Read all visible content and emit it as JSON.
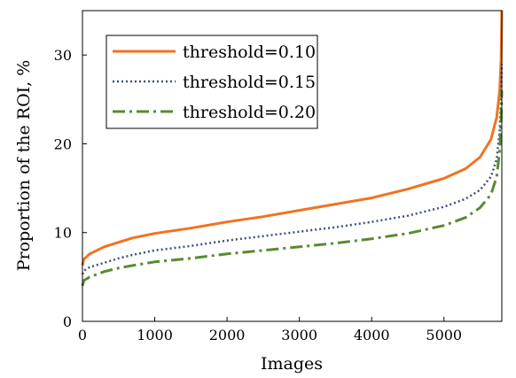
{
  "chart_data": {
    "type": "line",
    "xlabel": "Images",
    "ylabel": "Proportion of  the ROI, %",
    "xlim": [
      0,
      5800
    ],
    "ylim": [
      0,
      35
    ],
    "xticks": [
      0,
      1000,
      2000,
      3000,
      4000,
      5000
    ],
    "yticks": [
      0,
      10,
      20,
      30
    ],
    "grid": false,
    "legend_position": "top-left",
    "series": [
      {
        "name": "threshold=0.10",
        "color": "#f07320",
        "style": "solid",
        "points": [
          [
            0,
            6.3
          ],
          [
            20,
            7.0
          ],
          [
            100,
            7.6
          ],
          [
            300,
            8.4
          ],
          [
            500,
            8.9
          ],
          [
            700,
            9.4
          ],
          [
            1000,
            9.9
          ],
          [
            1500,
            10.5
          ],
          [
            2000,
            11.2
          ],
          [
            2500,
            11.8
          ],
          [
            3000,
            12.5
          ],
          [
            3500,
            13.2
          ],
          [
            4000,
            13.9
          ],
          [
            4500,
            14.9
          ],
          [
            5000,
            16.1
          ],
          [
            5300,
            17.2
          ],
          [
            5500,
            18.5
          ],
          [
            5650,
            20.5
          ],
          [
            5730,
            23.0
          ],
          [
            5770,
            26.0
          ],
          [
            5790,
            29.5
          ],
          [
            5800,
            35.0
          ]
        ]
      },
      {
        "name": "threshold=0.15",
        "color": "#3d5078",
        "style": "dotted",
        "points": [
          [
            0,
            5.3
          ],
          [
            20,
            5.7
          ],
          [
            100,
            6.1
          ],
          [
            300,
            6.6
          ],
          [
            500,
            7.1
          ],
          [
            700,
            7.5
          ],
          [
            1000,
            8.0
          ],
          [
            1500,
            8.5
          ],
          [
            2000,
            9.1
          ],
          [
            2500,
            9.6
          ],
          [
            3000,
            10.1
          ],
          [
            3500,
            10.6
          ],
          [
            4000,
            11.2
          ],
          [
            4500,
            11.9
          ],
          [
            5000,
            12.9
          ],
          [
            5300,
            13.8
          ],
          [
            5500,
            14.8
          ],
          [
            5650,
            16.3
          ],
          [
            5730,
            18.3
          ],
          [
            5770,
            21.5
          ],
          [
            5790,
            25.0
          ],
          [
            5800,
            29.0
          ]
        ]
      },
      {
        "name": "threshold=0.20",
        "color": "#5a8a32",
        "style": "dashdot",
        "points": [
          [
            0,
            4.0
          ],
          [
            20,
            4.6
          ],
          [
            100,
            5.0
          ],
          [
            300,
            5.6
          ],
          [
            500,
            6.0
          ],
          [
            700,
            6.3
          ],
          [
            1000,
            6.7
          ],
          [
            1500,
            7.1
          ],
          [
            2000,
            7.6
          ],
          [
            2500,
            8.0
          ],
          [
            3000,
            8.4
          ],
          [
            3500,
            8.8
          ],
          [
            4000,
            9.3
          ],
          [
            4500,
            9.9
          ],
          [
            5000,
            10.8
          ],
          [
            5300,
            11.7
          ],
          [
            5500,
            12.8
          ],
          [
            5650,
            14.3
          ],
          [
            5730,
            16.3
          ],
          [
            5770,
            19.3
          ],
          [
            5790,
            22.5
          ],
          [
            5800,
            26.0
          ]
        ]
      }
    ]
  }
}
